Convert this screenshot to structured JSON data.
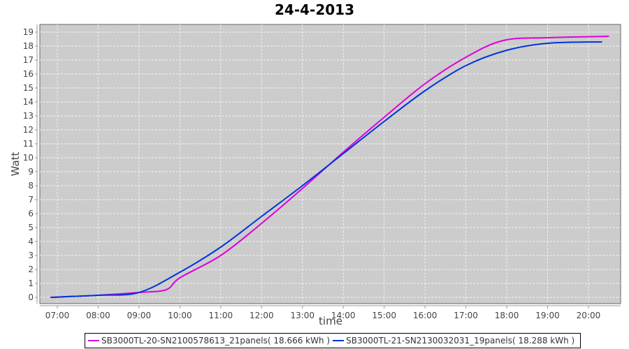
{
  "chart_data": {
    "type": "line",
    "title": "24-4-2013",
    "xlabel": "time",
    "ylabel": "Watt",
    "xlim": [
      "06:35",
      "20:50"
    ],
    "ylim": [
      0,
      19.5
    ],
    "x_ticks": [
      "07:00",
      "08:00",
      "09:00",
      "10:00",
      "11:00",
      "12:00",
      "13:00",
      "14:00",
      "15:00",
      "16:00",
      "17:00",
      "18:00",
      "19:00",
      "20:00"
    ],
    "y_ticks": [
      0,
      1,
      2,
      3,
      4,
      5,
      6,
      7,
      8,
      9,
      10,
      11,
      12,
      13,
      14,
      15,
      16,
      17,
      18,
      19
    ],
    "grid": true,
    "legend_placement": "bottom",
    "background": "#cccccc",
    "series": [
      {
        "name": "SB3000TL-20-SN2100578613_21panels( 18.666 kWh )",
        "color": "#dd00dd",
        "x": [
          "06:50",
          "08:00",
          "09:00",
          "09:40",
          "10:00",
          "11:00",
          "12:00",
          "13:00",
          "14:00",
          "15:00",
          "16:00",
          "17:00",
          "17:55",
          "19:00",
          "20:30"
        ],
        "y": [
          0,
          0.15,
          0.35,
          0.55,
          1.4,
          3.0,
          5.3,
          7.8,
          10.4,
          12.9,
          15.3,
          17.2,
          18.4,
          18.6,
          18.7
        ]
      },
      {
        "name": "SB3000TL-21-SN2130032031_19panels( 18.288 kWh )",
        "color": "#0033dd",
        "x": [
          "06:50",
          "08:00",
          "09:00",
          "10:00",
          "11:00",
          "12:00",
          "13:00",
          "14:00",
          "15:00",
          "16:00",
          "17:00",
          "18:00",
          "19:00",
          "20:20"
        ],
        "y": [
          0,
          0.15,
          0.35,
          1.8,
          3.6,
          5.8,
          8.0,
          10.3,
          12.6,
          14.8,
          16.6,
          17.7,
          18.2,
          18.3
        ]
      }
    ]
  }
}
